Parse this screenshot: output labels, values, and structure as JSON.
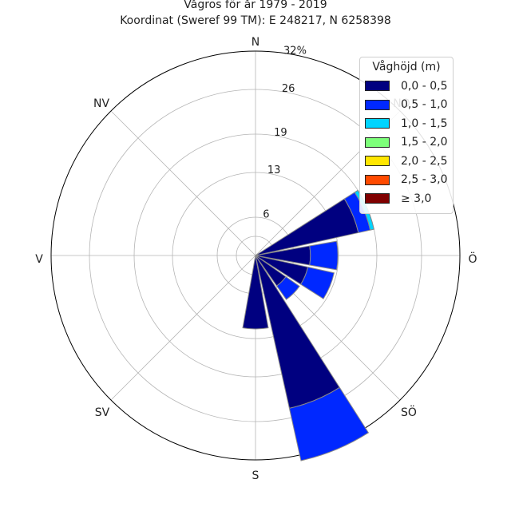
{
  "chart_data": {
    "type": "windrose",
    "title": "Vågros för år 1979 - 2019",
    "subtitle": "Koordinat (Sweref 99 TM): E 248217, N 6258398",
    "directions": [
      {
        "label": "N",
        "angle": 0
      },
      {
        "label": "NO",
        "angle": 45
      },
      {
        "label": "Ö",
        "angle": 90
      },
      {
        "label": "SÖ",
        "angle": 135
      },
      {
        "label": "S",
        "angle": 180
      },
      {
        "label": "SV",
        "angle": 225
      },
      {
        "label": "V",
        "angle": 270
      },
      {
        "label": "NV",
        "angle": 315
      }
    ],
    "radial_ticks": [
      "6",
      "13",
      "19",
      "26",
      "32%"
    ],
    "radial_values": [
      6,
      13,
      19,
      26,
      32
    ],
    "rmax": 32,
    "legend_title": "Våghöjd (m)",
    "series": [
      {
        "name": "0,0 - 0,5",
        "color": "#000080"
      },
      {
        "name": "0,5 - 1,0",
        "color": "#0028ff"
      },
      {
        "name": "1,0 - 1,5",
        "color": "#00d4ff"
      },
      {
        "name": "1,5 - 2,0",
        "color": "#7dff7a"
      },
      {
        "name": "2,0 - 2,5",
        "color": "#ffe600"
      },
      {
        "name": "2,5 - 3,0",
        "color": "#ff4a00"
      },
      {
        "name": "≥ 3,0",
        "color": "#800000"
      }
    ],
    "sectors": [
      {
        "direction": 67.5,
        "values": [
          16.5,
          1.9,
          0.6
        ]
      },
      {
        "direction": 90,
        "values": [
          8.6,
          4.3
        ]
      },
      {
        "direction": 112.5,
        "values": [
          8.4,
          4.2
        ]
      },
      {
        "direction": 135,
        "values": [
          5.8,
          2.6
        ]
      },
      {
        "direction": 157.5,
        "values": [
          24.5,
          8.4
        ]
      },
      {
        "direction": 180,
        "values": [
          11.5
        ]
      }
    ],
    "sector_width_deg": 20,
    "grid": true
  }
}
